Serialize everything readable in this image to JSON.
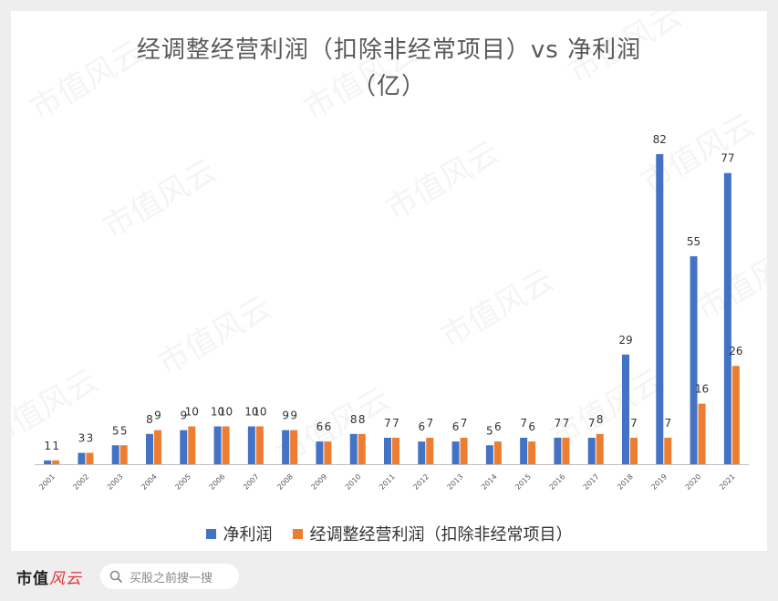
{
  "title_line1": "经调整经营利润（扣除非经常项目）vs 净利润",
  "title_line2": "（亿）",
  "legend": [
    "净利润",
    "经调整经营利润（扣除非经常项目）"
  ],
  "colors": {
    "net": "#4472c4",
    "adjusted": "#ed7d31"
  },
  "watermark_text": "市值风云",
  "footer": {
    "brand_text": "市值",
    "brand_accent": "风云",
    "search_icon": "search-icon",
    "search_placeholder": "买股之前搜一搜"
  },
  "chart_data": {
    "type": "bar",
    "categories": [
      "2001",
      "2002",
      "2003",
      "2004",
      "2005",
      "2006",
      "2007",
      "2008",
      "2009",
      "2010",
      "2011",
      "2012",
      "2013",
      "2014",
      "2015",
      "2016",
      "2017",
      "2018",
      "2019",
      "2020",
      "2021"
    ],
    "series": [
      {
        "name": "净利润",
        "values": [
          1,
          3,
          5,
          8,
          9,
          10,
          10,
          9,
          6,
          8,
          7,
          6,
          6,
          5,
          7,
          7,
          7,
          29,
          82,
          55,
          77
        ]
      },
      {
        "name": "经调整经营利润（扣除非经常项目）",
        "values": [
          1,
          3,
          5,
          9,
          10,
          10,
          10,
          9,
          6,
          8,
          7,
          7,
          7,
          6,
          6,
          7,
          8,
          7,
          7,
          16,
          26
        ]
      }
    ],
    "ylim": [
      0,
      82
    ],
    "grid": false,
    "data_labels": true,
    "legend_position": "bottom"
  }
}
